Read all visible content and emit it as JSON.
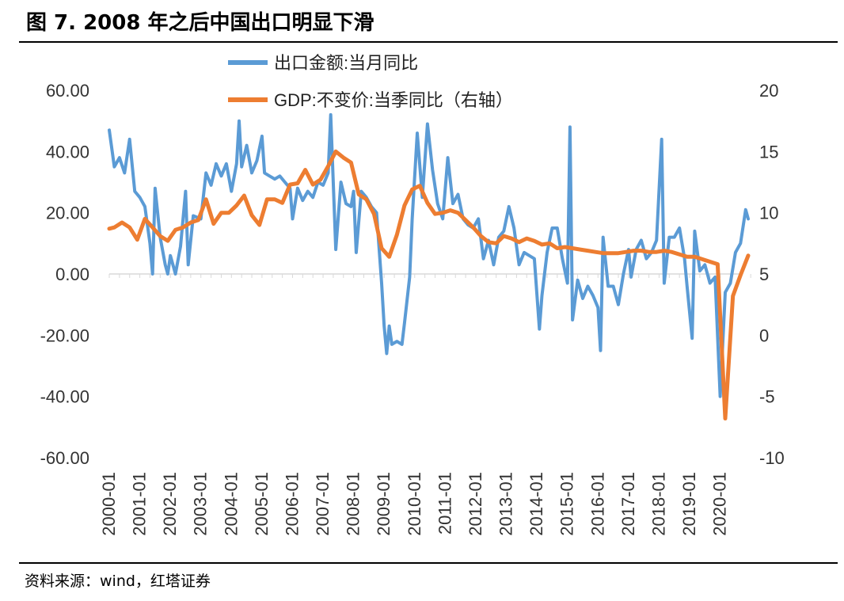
{
  "header": {
    "title": "图 7. 2008 年之后中国出口明显下滑"
  },
  "footer": {
    "source": "资料来源：wind，红塔证券"
  },
  "chart_data": {
    "type": "line",
    "title": "图 7. 2008 年之后中国出口明显下滑",
    "legend_position": "top-center",
    "grid": false,
    "x_ticks": [
      "2000-01",
      "2001-01",
      "2002-01",
      "2003-01",
      "2004-01",
      "2005-01",
      "2006-01",
      "2007-01",
      "2008-01",
      "2009-01",
      "2010-01",
      "2011-01",
      "2012-01",
      "2013-01",
      "2014-01",
      "2015-01",
      "2016-01",
      "2017-01",
      "2018-01",
      "2019-01",
      "2020-01"
    ],
    "y_left": {
      "ylim": [
        -60,
        60
      ],
      "ticks": [
        "60.00",
        "40.00",
        "20.00",
        "0.00",
        "-20.00",
        "-40.00",
        "-60.00"
      ]
    },
    "y_right": {
      "ylim": [
        -10,
        20
      ],
      "ticks": [
        "20",
        "15",
        "10",
        "5",
        "0",
        "-5",
        "-10"
      ]
    },
    "series": [
      {
        "name": "出口金额:当月同比",
        "axis": "left",
        "color": "#5B9BD5",
        "points": [
          [
            "2000-01",
            47
          ],
          [
            "2000-03",
            35
          ],
          [
            "2000-05",
            38
          ],
          [
            "2000-07",
            33
          ],
          [
            "2000-09",
            44
          ],
          [
            "2000-11",
            27
          ],
          [
            "2001-01",
            25
          ],
          [
            "2001-03",
            22
          ],
          [
            "2001-05",
            10
          ],
          [
            "2001-06",
            0
          ],
          [
            "2001-07",
            28
          ],
          [
            "2001-09",
            12
          ],
          [
            "2001-11",
            3
          ],
          [
            "2001-12",
            0
          ],
          [
            "2002-01",
            6
          ],
          [
            "2002-03",
            0
          ],
          [
            "2002-05",
            9
          ],
          [
            "2002-07",
            27
          ],
          [
            "2002-08",
            3
          ],
          [
            "2002-10",
            19
          ],
          [
            "2003-01",
            18
          ],
          [
            "2003-03",
            33
          ],
          [
            "2003-05",
            29
          ],
          [
            "2003-07",
            36
          ],
          [
            "2003-09",
            32
          ],
          [
            "2003-11",
            36
          ],
          [
            "2004-01",
            27
          ],
          [
            "2004-03",
            36
          ],
          [
            "2004-04",
            50
          ],
          [
            "2004-05",
            35
          ],
          [
            "2004-07",
            42
          ],
          [
            "2004-09",
            33
          ],
          [
            "2004-11",
            37
          ],
          [
            "2005-01",
            45
          ],
          [
            "2005-02",
            33
          ],
          [
            "2005-04",
            32
          ],
          [
            "2005-06",
            31
          ],
          [
            "2005-08",
            32
          ],
          [
            "2005-10",
            30
          ],
          [
            "2005-12",
            28
          ],
          [
            "2006-01",
            18
          ],
          [
            "2006-03",
            28
          ],
          [
            "2006-05",
            24
          ],
          [
            "2006-07",
            27
          ],
          [
            "2006-09",
            25
          ],
          [
            "2006-11",
            30
          ],
          [
            "2007-01",
            29
          ],
          [
            "2007-03",
            33
          ],
          [
            "2007-04",
            52
          ],
          [
            "2007-06",
            8
          ],
          [
            "2007-08",
            30
          ],
          [
            "2007-10",
            23
          ],
          [
            "2007-12",
            22
          ],
          [
            "2008-01",
            27
          ],
          [
            "2008-02",
            7
          ],
          [
            "2008-04",
            27
          ],
          [
            "2008-06",
            25
          ],
          [
            "2008-08",
            22
          ],
          [
            "2008-10",
            20
          ],
          [
            "2008-12",
            -3
          ],
          [
            "2009-01",
            -17
          ],
          [
            "2009-02",
            -26
          ],
          [
            "2009-03",
            -17
          ],
          [
            "2009-04",
            -23
          ],
          [
            "2009-06",
            -22
          ],
          [
            "2009-08",
            -23
          ],
          [
            "2009-09",
            -16
          ],
          [
            "2009-11",
            -1
          ],
          [
            "2009-12",
            18
          ],
          [
            "2010-02",
            46
          ],
          [
            "2010-04",
            25
          ],
          [
            "2010-06",
            49
          ],
          [
            "2010-08",
            34
          ],
          [
            "2010-10",
            23
          ],
          [
            "2010-12",
            18
          ],
          [
            "2011-02",
            38
          ],
          [
            "2011-04",
            23
          ],
          [
            "2011-06",
            26
          ],
          [
            "2011-08",
            18
          ],
          [
            "2011-10",
            16
          ],
          [
            "2011-12",
            15
          ],
          [
            "2012-02",
            18
          ],
          [
            "2012-04",
            5
          ],
          [
            "2012-06",
            11
          ],
          [
            "2012-08",
            3
          ],
          [
            "2012-10",
            12
          ],
          [
            "2012-12",
            14
          ],
          [
            "2013-02",
            22
          ],
          [
            "2013-04",
            15
          ],
          [
            "2013-06",
            3
          ],
          [
            "2013-08",
            7
          ],
          [
            "2013-10",
            6
          ],
          [
            "2013-12",
            5
          ],
          [
            "2014-02",
            -18
          ],
          [
            "2014-03",
            -7
          ],
          [
            "2014-05",
            7
          ],
          [
            "2014-07",
            15
          ],
          [
            "2014-09",
            15
          ],
          [
            "2014-11",
            5
          ],
          [
            "2015-01",
            -3
          ],
          [
            "2015-02",
            48
          ],
          [
            "2015-03",
            -15
          ],
          [
            "2015-05",
            -2
          ],
          [
            "2015-07",
            -8
          ],
          [
            "2015-09",
            -4
          ],
          [
            "2015-11",
            -7
          ],
          [
            "2016-01",
            -11
          ],
          [
            "2016-02",
            -25
          ],
          [
            "2016-03",
            12
          ],
          [
            "2016-05",
            -4
          ],
          [
            "2016-07",
            -4
          ],
          [
            "2016-09",
            -10
          ],
          [
            "2016-11",
            0
          ],
          [
            "2017-01",
            8
          ],
          [
            "2017-02",
            -1
          ],
          [
            "2017-04",
            8
          ],
          [
            "2017-06",
            11
          ],
          [
            "2017-08",
            5
          ],
          [
            "2017-10",
            7
          ],
          [
            "2017-12",
            11
          ],
          [
            "2018-02",
            44
          ],
          [
            "2018-03",
            -3
          ],
          [
            "2018-05",
            12
          ],
          [
            "2018-07",
            12
          ],
          [
            "2018-09",
            15
          ],
          [
            "2018-11",
            5
          ],
          [
            "2018-12",
            -4
          ],
          [
            "2019-02",
            -21
          ],
          [
            "2019-03",
            14
          ],
          [
            "2019-05",
            1
          ],
          [
            "2019-07",
            3
          ],
          [
            "2019-09",
            -3
          ],
          [
            "2019-11",
            -1
          ],
          [
            "2020-01",
            -40
          ],
          [
            "2020-03",
            -6
          ],
          [
            "2020-05",
            -3
          ],
          [
            "2020-07",
            7
          ],
          [
            "2020-09",
            10
          ],
          [
            "2020-11",
            21
          ],
          [
            "2020-12",
            18
          ]
        ]
      },
      {
        "name": "GDP:不变价:当季同比（右轴）",
        "axis": "right",
        "color": "#ED7D31",
        "points": [
          [
            "2000-01",
            8.7
          ],
          [
            "2000-03",
            8.8
          ],
          [
            "2000-06",
            9.2
          ],
          [
            "2000-09",
            8.8
          ],
          [
            "2000-12",
            7.8
          ],
          [
            "2001-03",
            9.5
          ],
          [
            "2001-06",
            8.8
          ],
          [
            "2001-09",
            8.1
          ],
          [
            "2001-12",
            7.7
          ],
          [
            "2002-03",
            8.6
          ],
          [
            "2002-06",
            8.8
          ],
          [
            "2002-09",
            9.2
          ],
          [
            "2002-12",
            9.4
          ],
          [
            "2003-03",
            11.1
          ],
          [
            "2003-06",
            9.1
          ],
          [
            "2003-09",
            10.0
          ],
          [
            "2003-12",
            10.0
          ],
          [
            "2004-03",
            10.6
          ],
          [
            "2004-06",
            11.4
          ],
          [
            "2004-09",
            9.8
          ],
          [
            "2004-12",
            9.0
          ],
          [
            "2005-03",
            11.1
          ],
          [
            "2005-06",
            11.1
          ],
          [
            "2005-09",
            10.8
          ],
          [
            "2005-12",
            12.3
          ],
          [
            "2006-03",
            12.4
          ],
          [
            "2006-06",
            13.5
          ],
          [
            "2006-09",
            12.3
          ],
          [
            "2006-12",
            12.7
          ],
          [
            "2007-03",
            13.8
          ],
          [
            "2007-06",
            15.0
          ],
          [
            "2007-09",
            14.5
          ],
          [
            "2007-12",
            14.1
          ],
          [
            "2008-03",
            11.5
          ],
          [
            "2008-06",
            11.1
          ],
          [
            "2008-09",
            9.9
          ],
          [
            "2008-12",
            7.1
          ],
          [
            "2009-03",
            6.4
          ],
          [
            "2009-06",
            8.2
          ],
          [
            "2009-09",
            10.6
          ],
          [
            "2009-12",
            11.9
          ],
          [
            "2010-03",
            12.2
          ],
          [
            "2010-06",
            10.8
          ],
          [
            "2010-09",
            9.9
          ],
          [
            "2010-12",
            10.0
          ],
          [
            "2011-03",
            10.2
          ],
          [
            "2011-06",
            10.0
          ],
          [
            "2011-09",
            9.4
          ],
          [
            "2011-12",
            8.8
          ],
          [
            "2012-03",
            8.1
          ],
          [
            "2012-06",
            7.6
          ],
          [
            "2012-09",
            7.5
          ],
          [
            "2012-12",
            8.1
          ],
          [
            "2013-03",
            7.9
          ],
          [
            "2013-06",
            7.6
          ],
          [
            "2013-09",
            7.9
          ],
          [
            "2013-12",
            7.7
          ],
          [
            "2014-03",
            7.4
          ],
          [
            "2014-06",
            7.5
          ],
          [
            "2014-09",
            7.1
          ],
          [
            "2014-12",
            7.2
          ],
          [
            "2015-03",
            7.1
          ],
          [
            "2015-06",
            7.0
          ],
          [
            "2015-09",
            6.9
          ],
          [
            "2015-12",
            6.8
          ],
          [
            "2016-03",
            6.7
          ],
          [
            "2016-06",
            6.7
          ],
          [
            "2016-09",
            6.7
          ],
          [
            "2016-12",
            6.8
          ],
          [
            "2017-03",
            6.9
          ],
          [
            "2017-06",
            6.9
          ],
          [
            "2017-09",
            6.8
          ],
          [
            "2017-12",
            6.8
          ],
          [
            "2018-03",
            6.9
          ],
          [
            "2018-06",
            6.8
          ],
          [
            "2018-09",
            6.6
          ],
          [
            "2018-12",
            6.4
          ],
          [
            "2019-03",
            6.4
          ],
          [
            "2019-06",
            6.2
          ],
          [
            "2019-09",
            6.0
          ],
          [
            "2019-12",
            5.8
          ],
          [
            "2020-03",
            -6.8
          ],
          [
            "2020-06",
            3.2
          ],
          [
            "2020-09",
            4.9
          ],
          [
            "2020-12",
            6.5
          ]
        ]
      }
    ]
  }
}
